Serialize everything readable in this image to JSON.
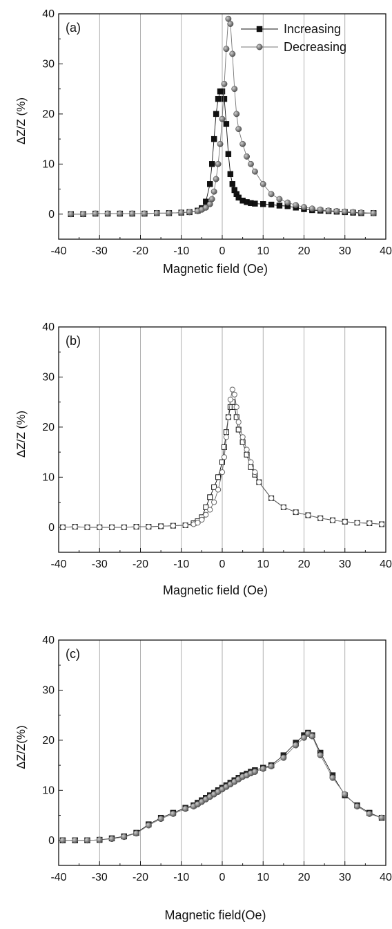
{
  "chart_data": [
    {
      "panel_label": "(a)",
      "type": "line",
      "xlabel": "Magnetic field (Oe)",
      "ylabel": "ΔZ/Z  (%)",
      "xlim": [
        -40,
        40
      ],
      "ylim": [
        -5,
        40
      ],
      "xticks": [
        -40,
        -30,
        -20,
        -10,
        0,
        10,
        20,
        30,
        40
      ],
      "yticks": [
        0,
        10,
        20,
        30,
        40
      ],
      "grid": "vertical",
      "legend": "top-right",
      "series": [
        {
          "name": "Increasing",
          "marker": "square",
          "color": "#111111",
          "x": [
            -37,
            -34,
            -31,
            -28,
            -25,
            -22,
            -19,
            -16,
            -13,
            -10,
            -8,
            -6,
            -5,
            -4,
            -3,
            -2.5,
            -2,
            -1.5,
            -1,
            -0.5,
            0,
            0.5,
            1,
            1.5,
            2,
            2.5,
            3,
            3.5,
            4,
            5,
            6,
            7,
            8,
            10,
            12,
            14,
            16,
            18,
            20,
            22,
            24,
            26,
            28,
            30,
            32,
            34,
            37
          ],
          "y": [
            0,
            0,
            0.1,
            0.1,
            0.1,
            0.1,
            0.1,
            0.2,
            0.2,
            0.3,
            0.4,
            0.7,
            1.2,
            2.5,
            6,
            10,
            15,
            20,
            23,
            24.5,
            24.5,
            23,
            18,
            12,
            8,
            6,
            4.8,
            4,
            3.3,
            2.7,
            2.4,
            2.2,
            2.1,
            2.0,
            1.9,
            1.7,
            1.6,
            1.3,
            1.0,
            0.8,
            0.7,
            0.6,
            0.5,
            0.4,
            0.3,
            0.2,
            0.2
          ]
        },
        {
          "name": "Decreasing",
          "marker": "circle",
          "color": "#777777",
          "x": [
            -37,
            -34,
            -31,
            -28,
            -25,
            -22,
            -19,
            -16,
            -13,
            -10,
            -8,
            -6,
            -5,
            -4,
            -3,
            -2.5,
            -2,
            -1.5,
            -1,
            -0.5,
            0,
            0.5,
            1,
            1.5,
            2,
            2.5,
            3,
            3.5,
            4,
            5,
            6,
            7,
            8,
            10,
            12,
            14,
            16,
            18,
            20,
            22,
            24,
            26,
            28,
            30,
            32,
            34,
            37
          ],
          "y": [
            0,
            0,
            0.1,
            0.1,
            0.1,
            0.1,
            0.1,
            0.2,
            0.2,
            0.3,
            0.4,
            0.6,
            0.9,
            1.3,
            2,
            3,
            4.5,
            7,
            10,
            14,
            19,
            26,
            33,
            39,
            38,
            32,
            25,
            20,
            17,
            14,
            11.5,
            10,
            8.5,
            6,
            4,
            3,
            2.3,
            1.8,
            1.4,
            1.1,
            0.9,
            0.7,
            0.6,
            0.5,
            0.4,
            0.3,
            0.2
          ]
        }
      ]
    },
    {
      "panel_label": "(b)",
      "type": "line",
      "xlabel": "Magnetic field (Oe)",
      "ylabel": "ΔZ/Z (%)",
      "xlim": [
        -40,
        40
      ],
      "ylim": [
        -5,
        40
      ],
      "xticks": [
        -40,
        -30,
        -20,
        -10,
        0,
        10,
        20,
        30,
        40
      ],
      "yticks": [
        0,
        10,
        20,
        30,
        40
      ],
      "grid": "vertical",
      "legend": "none",
      "series": [
        {
          "marker": "square-open",
          "color": "#111111",
          "x": [
            -39,
            -36,
            -33,
            -30,
            -27,
            -24,
            -21,
            -18,
            -15,
            -12,
            -9,
            -7,
            -6,
            -5,
            -4,
            -3,
            -2,
            -1,
            0,
            0.5,
            1,
            1.5,
            2,
            2.5,
            3,
            3.5,
            4,
            5,
            6,
            7,
            8,
            9,
            12,
            15,
            18,
            21,
            24,
            27,
            30,
            33,
            36,
            39
          ],
          "y": [
            0,
            0.1,
            0,
            0,
            0,
            0,
            0.1,
            0.1,
            0.2,
            0.3,
            0.4,
            0.8,
            1.2,
            2,
            4,
            6,
            8,
            10,
            13,
            16,
            19,
            22,
            24,
            25,
            24,
            22,
            19.5,
            17,
            14.5,
            12,
            10.5,
            9,
            5.8,
            4,
            3,
            2.4,
            1.8,
            1.4,
            1.1,
            0.9,
            0.8,
            0.6
          ]
        },
        {
          "marker": "circle-open",
          "color": "#666666",
          "x": [
            -39,
            -36,
            -33,
            -30,
            -27,
            -24,
            -21,
            -18,
            -15,
            -12,
            -9,
            -7,
            -6,
            -5,
            -4,
            -3,
            -2,
            -1,
            0,
            0.5,
            1,
            1.5,
            2,
            2.5,
            3,
            3.5,
            4,
            5,
            6,
            7,
            8,
            9,
            12,
            15,
            18,
            21,
            24,
            27,
            30,
            33,
            36,
            39
          ],
          "y": [
            0,
            0.1,
            0,
            0,
            0,
            0,
            0.1,
            0.1,
            0.2,
            0.3,
            0.4,
            0.6,
            0.9,
            1.5,
            2.5,
            3.5,
            5,
            7.5,
            11,
            14,
            18,
            22,
            25.5,
            27.5,
            26.5,
            24,
            21,
            18,
            15.5,
            13,
            11,
            9,
            5.8,
            4,
            3,
            2.4,
            1.8,
            1.4,
            1.1,
            0.9,
            0.8,
            0.6
          ]
        }
      ]
    },
    {
      "panel_label": "(c)",
      "type": "line",
      "xlabel": "Magnetic field(Oe)",
      "ylabel": "ΔZ/Z(%)",
      "xlim": [
        -40,
        40
      ],
      "ylim": [
        -5,
        40
      ],
      "xticks": [
        -40,
        -30,
        -20,
        -10,
        0,
        10,
        20,
        30,
        40
      ],
      "yticks": [
        0,
        10,
        20,
        30,
        40
      ],
      "grid": "vertical",
      "legend": "none",
      "series": [
        {
          "marker": "square",
          "color": "#222222",
          "x": [
            -39,
            -36,
            -33,
            -30,
            -27,
            -24,
            -21,
            -18,
            -15,
            -12,
            -9,
            -7,
            -6,
            -5,
            -4,
            -3,
            -2,
            -1,
            0,
            1,
            2,
            3,
            4,
            5,
            6,
            7,
            8,
            10,
            12,
            15,
            18,
            20,
            21,
            22,
            24,
            27,
            30,
            33,
            36,
            39
          ],
          "y": [
            0,
            0,
            0,
            0.1,
            0.4,
            0.8,
            1.5,
            3.2,
            4.5,
            5.5,
            6.5,
            7,
            7.5,
            8,
            8.5,
            9,
            9.5,
            10,
            10.5,
            11,
            11.5,
            12,
            12.5,
            13,
            13.3,
            13.7,
            14,
            14.5,
            15,
            17,
            19.5,
            21,
            21.5,
            21,
            17.5,
            13,
            9,
            7,
            5.5,
            4.5
          ]
        },
        {
          "marker": "circle",
          "color": "#777777",
          "x": [
            -39,
            -36,
            -33,
            -30,
            -27,
            -24,
            -21,
            -18,
            -15,
            -12,
            -9,
            -7,
            -6,
            -5,
            -4,
            -3,
            -2,
            -1,
            0,
            1,
            2,
            3,
            4,
            5,
            6,
            7,
            8,
            10,
            12,
            15,
            18,
            20,
            21,
            22,
            24,
            27,
            30,
            33,
            36,
            39
          ],
          "y": [
            0,
            0,
            0,
            0.1,
            0.3,
            0.7,
            1.4,
            3,
            4.3,
            5.3,
            6.3,
            6.8,
            7.2,
            7.7,
            8.2,
            8.7,
            9.2,
            9.7,
            10.2,
            10.7,
            11.2,
            11.7,
            12.2,
            12.7,
            13,
            13.4,
            13.7,
            14.3,
            14.8,
            16.5,
            19,
            20.5,
            21.3,
            20.8,
            17,
            12.5,
            9.2,
            6.8,
            5.3,
            4.5
          ]
        }
      ]
    }
  ]
}
